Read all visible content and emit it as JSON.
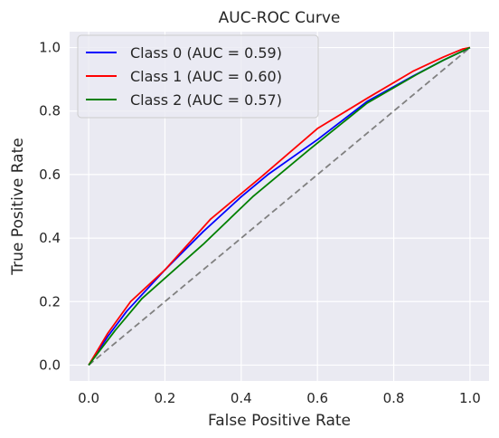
{
  "chart_data": {
    "type": "line",
    "title": "AUC-ROC Curve",
    "xlabel": "False Positive Rate",
    "ylabel": "True Positive Rate",
    "xlim": [
      -0.05,
      1.05
    ],
    "ylim": [
      -0.05,
      1.05
    ],
    "xticks": [
      0.0,
      0.2,
      0.4,
      0.6,
      0.8,
      1.0
    ],
    "yticks": [
      0.0,
      0.2,
      0.4,
      0.6,
      0.8,
      1.0
    ],
    "xtick_labels": [
      "0.0",
      "0.2",
      "0.4",
      "0.6",
      "0.8",
      "1.0"
    ],
    "ytick_labels": [
      "0.0",
      "0.2",
      "0.4",
      "0.6",
      "0.8",
      "1.0"
    ],
    "grid": true,
    "legend_position": "top-left",
    "background_color": "#eaeaf2",
    "series": [
      {
        "name": "Class 0 (AUC = 0.59)",
        "color": "#0000ff",
        "x": [
          0.0,
          0.05,
          0.1,
          0.2,
          0.3,
          0.4,
          0.47,
          0.6,
          0.73,
          0.85,
          0.93,
          1.0
        ],
        "y": [
          0.0,
          0.09,
          0.17,
          0.3,
          0.42,
          0.53,
          0.6,
          0.71,
          0.83,
          0.91,
          0.96,
          1.0
        ]
      },
      {
        "name": "Class 1 (AUC = 0.60)",
        "color": "#ff0000",
        "x": [
          0.0,
          0.05,
          0.11,
          0.2,
          0.32,
          0.45,
          0.6,
          0.73,
          0.85,
          0.93,
          0.98,
          1.0
        ],
        "y": [
          0.0,
          0.1,
          0.2,
          0.3,
          0.46,
          0.59,
          0.745,
          0.84,
          0.925,
          0.97,
          0.995,
          1.0
        ]
      },
      {
        "name": "Class 2 (AUC = 0.57)",
        "color": "#008000",
        "x": [
          0.0,
          0.07,
          0.14,
          0.3,
          0.43,
          0.58,
          0.73,
          0.86,
          0.93,
          1.0
        ],
        "y": [
          0.0,
          0.11,
          0.21,
          0.38,
          0.53,
          0.68,
          0.825,
          0.915,
          0.96,
          1.0
        ]
      }
    ],
    "reference_line": {
      "x": [
        0.0,
        1.0
      ],
      "y": [
        0.0,
        1.0
      ],
      "color": "#808080",
      "style": "dashed"
    }
  }
}
